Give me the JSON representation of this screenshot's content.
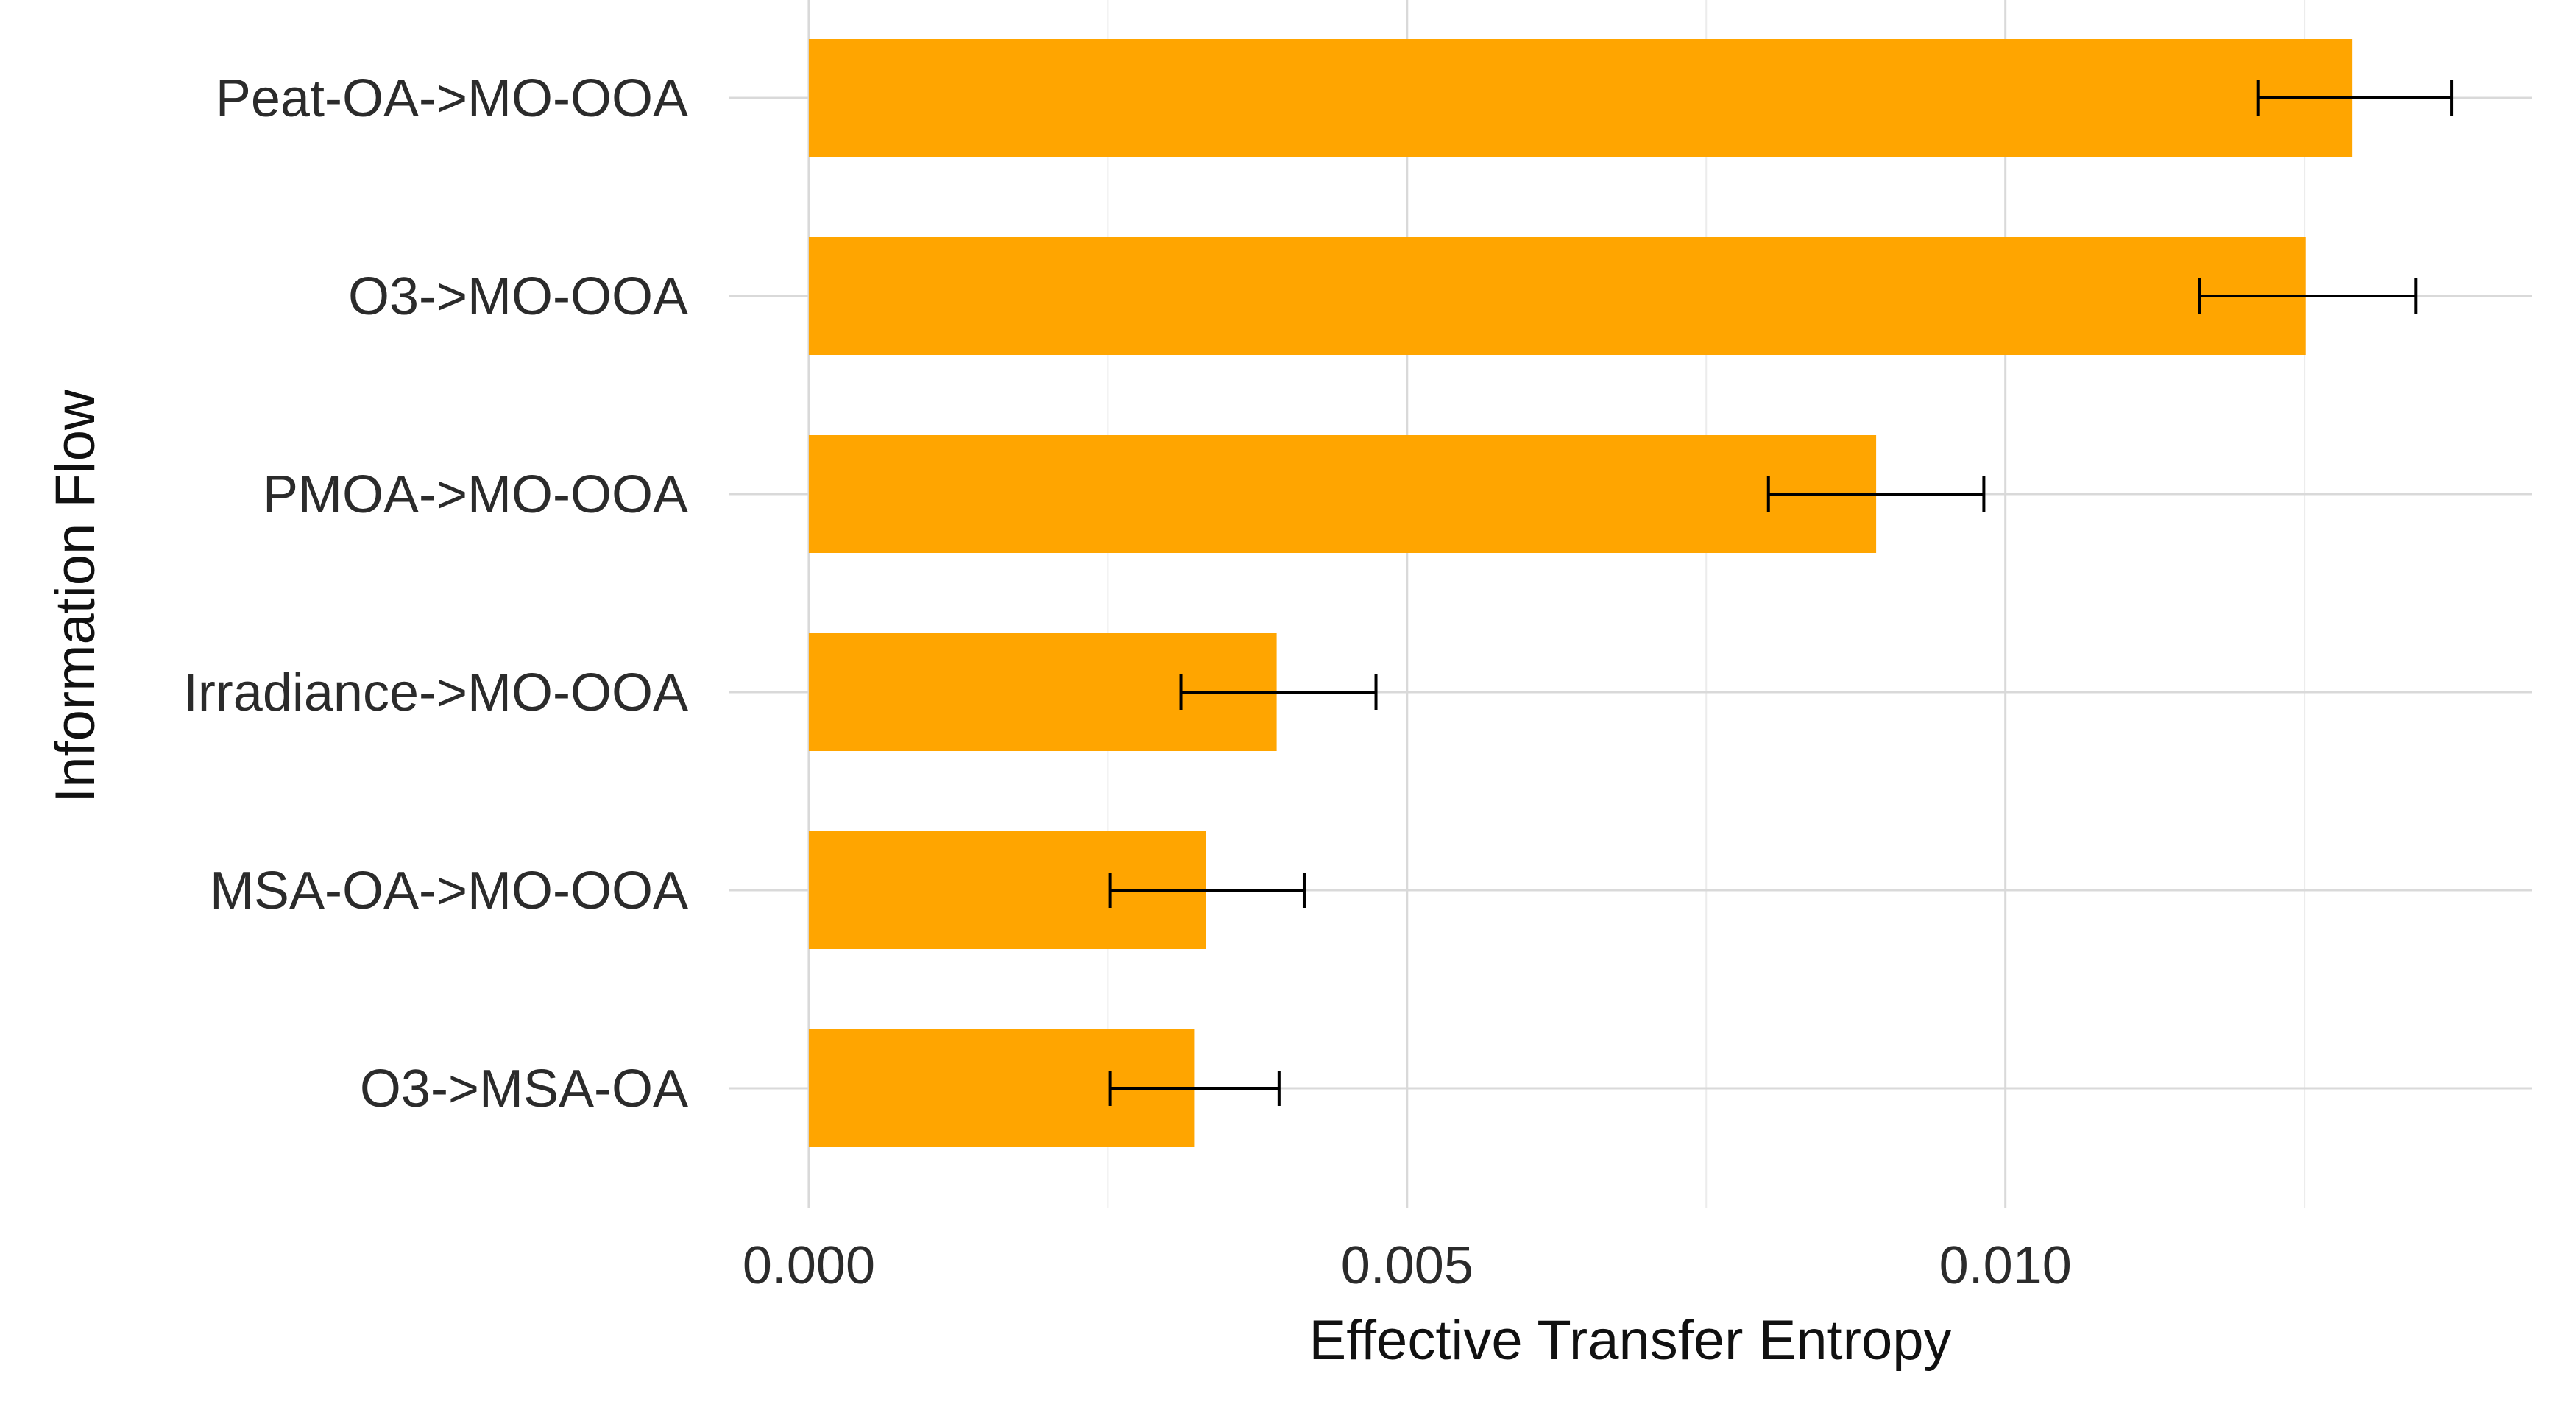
{
  "chart_data": {
    "type": "bar",
    "orientation": "horizontal",
    "title": "",
    "xlabel": "Effective Transfer Entropy",
    "ylabel": "Information Flow",
    "categories": [
      "Peat-OA->MO-OOA",
      "O3->MO-OOA",
      "PMOA->MO-OOA",
      "Irradiance->MO-OOA",
      "MSA-OA->MO-OOA",
      "O3->MSA-OA"
    ],
    "values": [
      0.0129,
      0.01251,
      0.00892,
      0.00391,
      0.00332,
      0.00322
    ],
    "error_low": [
      0.01211,
      0.01162,
      0.00802,
      0.00311,
      0.00252,
      0.00252
    ],
    "error_high": [
      0.01373,
      0.01343,
      0.00982,
      0.00474,
      0.00414,
      0.00393
    ],
    "xlim": [
      -0.00067,
      0.0144
    ],
    "xticks": [
      "0.000",
      "0.005",
      "0.010"
    ],
    "xtick_values": [
      0.0,
      0.005,
      0.01
    ],
    "x_minor_gridlines": [
      0.0025,
      0.0075,
      0.0125
    ],
    "grid": true,
    "legend": "none",
    "colors": {
      "bar": "#FFA500",
      "error_bar": "#000000",
      "grid_major": "#d9d9d9",
      "grid_minor": "#ececec",
      "text": "#2b2b2b"
    }
  }
}
